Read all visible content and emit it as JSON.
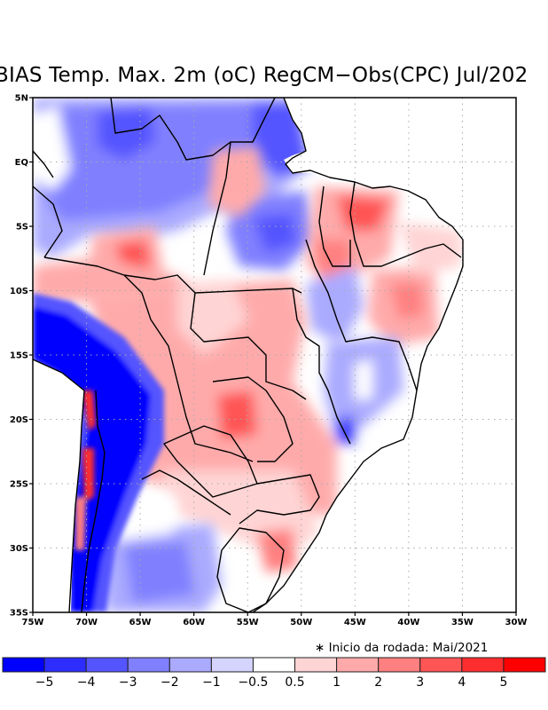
{
  "title": "BIAS Temp. Max. 2m (oC) RegCM−Obs(CPC) Jul/202",
  "note": "∗ Inicio da rodada: Mai/2021",
  "map": {
    "lon_range": [
      -75,
      -30
    ],
    "lat_range": [
      -35,
      5
    ],
    "lat_ticks": [
      {
        "value": 5,
        "label": "5N"
      },
      {
        "value": 0,
        "label": "EQ"
      },
      {
        "value": -5,
        "label": "5S"
      },
      {
        "value": -10,
        "label": "10S"
      },
      {
        "value": -15,
        "label": "15S"
      },
      {
        "value": -20,
        "label": "20S"
      },
      {
        "value": -25,
        "label": "25S"
      },
      {
        "value": -30,
        "label": "30S"
      },
      {
        "value": -35,
        "label": "35S"
      }
    ],
    "lon_ticks": [
      {
        "value": -75,
        "label": "75W"
      },
      {
        "value": -70,
        "label": "70W"
      },
      {
        "value": -65,
        "label": "65W"
      },
      {
        "value": -60,
        "label": "60W"
      },
      {
        "value": -55,
        "label": "55W"
      },
      {
        "value": -50,
        "label": "50W"
      },
      {
        "value": -45,
        "label": "45W"
      },
      {
        "value": -40,
        "label": "40W"
      },
      {
        "value": -35,
        "label": "35W"
      },
      {
        "value": -30,
        "label": "30W"
      }
    ],
    "grid": "dotted"
  },
  "colorbar": {
    "colors": [
      "#0000ff",
      "#2d2dff",
      "#5555ff",
      "#8080ff",
      "#aaaaff",
      "#d4d4ff",
      "#ffffff",
      "#ffd4d4",
      "#ffaaaa",
      "#ff8080",
      "#ff5555",
      "#ff2d2d",
      "#ff0000"
    ],
    "labels": [
      "−5",
      "−4",
      "−3",
      "−2",
      "−1",
      "−0.5",
      "0.5",
      "1",
      "2",
      "3",
      "4",
      "5"
    ]
  },
  "colors": {
    "frame": "#000000",
    "grid": "#aaaaaa"
  }
}
